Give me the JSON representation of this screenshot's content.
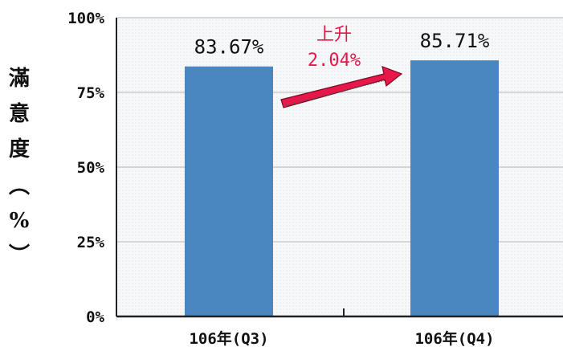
{
  "chart_data": {
    "type": "bar",
    "categories": [
      "106年(Q3)",
      "106年(Q4)"
    ],
    "values": [
      83.67,
      85.71
    ],
    "data_labels": [
      "83.67%",
      "85.71%"
    ],
    "xlabel": "",
    "ylabel": [
      "滿",
      "意",
      "度",
      "︵",
      "%",
      "︶"
    ],
    "ylim": [
      0,
      100
    ],
    "yticks": [
      0,
      25,
      50,
      75,
      100
    ],
    "ytick_labels": [
      "0%",
      "25%",
      "50%",
      "75%",
      "100%"
    ],
    "grid": true,
    "annotation": {
      "line1": "上升",
      "line2": "2.04%"
    }
  },
  "colors": {
    "bar": "#4a86bf",
    "plot_bg": "#f4f6f7",
    "grid": "#b5b5b5",
    "arrow": "#e8174a",
    "annotation_text": "#e8174a"
  }
}
